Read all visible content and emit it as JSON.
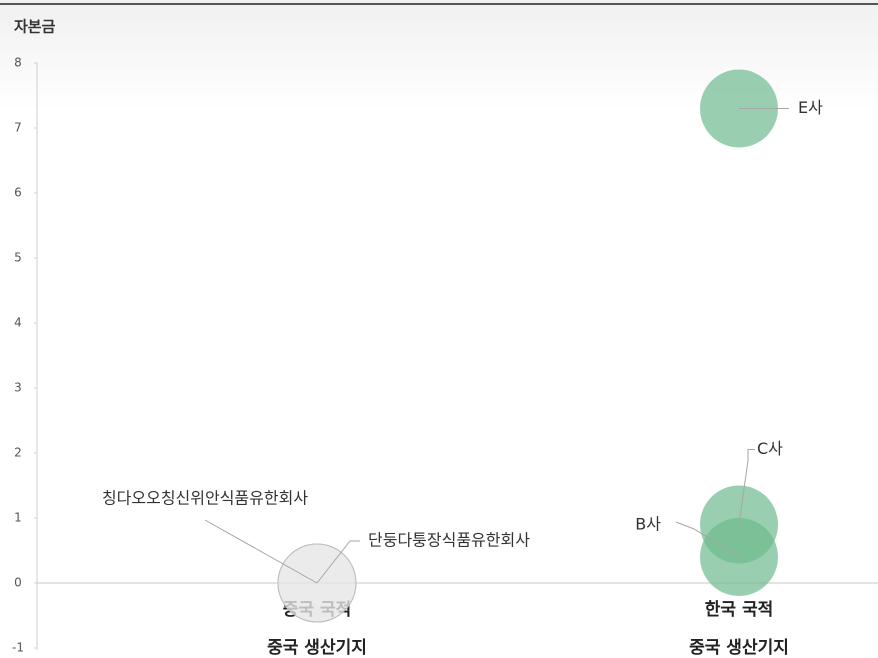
{
  "chart_data": {
    "type": "bubble",
    "y_label": "자본금",
    "ylim": [
      -1,
      8
    ],
    "yticks": [
      -1,
      0,
      1,
      2,
      3,
      4,
      5,
      6,
      7,
      8
    ],
    "groups": [
      {
        "label": [
          "중국 국적",
          "중국 생산기지"
        ],
        "points": [
          {
            "name": "칭다오오칭신위안식품유한회사",
            "y": 0,
            "color": "#e6e6e6"
          },
          {
            "name": "단둥다퉁장식품유한회사",
            "y": 0,
            "color": "#e6e6e6"
          }
        ]
      },
      {
        "label": [
          "한국 국적",
          "중국 생산기지"
        ],
        "points": [
          {
            "name": "B사",
            "y": 0.4,
            "color": "#6dbb8f"
          },
          {
            "name": "C사",
            "y": 0.9,
            "color": "#6dbb8f"
          },
          {
            "name": "E사",
            "y": 7.3,
            "color": "#6dbb8f"
          }
        ]
      }
    ]
  }
}
